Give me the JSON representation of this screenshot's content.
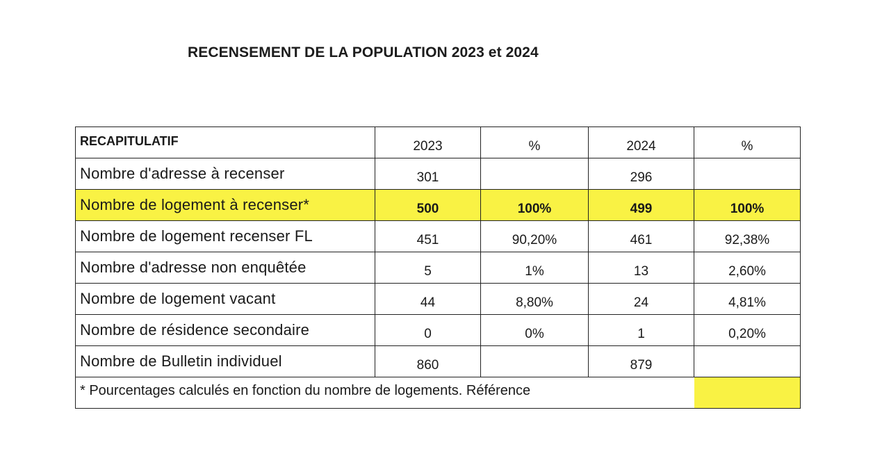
{
  "document": {
    "title": "RECENSEMENT DE LA POPULATION 2023 et 2024"
  },
  "table": {
    "header": {
      "label": "RECAPITULATIF",
      "col_2023": "2023",
      "col_pct_2023": "%",
      "col_2024": "2024",
      "col_pct_2024": "%"
    },
    "rows": [
      {
        "label": "Nombre d'adresse à recenser",
        "v2023": "301",
        "p2023": "",
        "v2024": "296",
        "p2024": ""
      },
      {
        "label": "Nombre de logement à recenser*",
        "v2023": "500",
        "p2023": "100%",
        "v2024": "499",
        "p2024": "100%",
        "highlight": true
      },
      {
        "label": "Nombre de logement recenser FL",
        "v2023": "451",
        "p2023": "90,20%",
        "v2024": "461",
        "p2024": "92,38%"
      },
      {
        "label": "Nombre d'adresse non enquêtée",
        "v2023": "5",
        "p2023": "1%",
        "v2024": "13",
        "p2024": "2,60%"
      },
      {
        "label": "Nombre de logement vacant",
        "v2023": "44",
        "p2023": "8,80%",
        "v2024": "24",
        "p2024": "4,81%"
      },
      {
        "label": "Nombre de résidence secondaire",
        "v2023": "0",
        "p2023": "0%",
        "v2024": "1",
        "p2024": "0,20%"
      },
      {
        "label": "Nombre de Bulletin individuel",
        "v2023": "860",
        "p2023": "",
        "v2024": "879",
        "p2024": ""
      }
    ],
    "footnote": "* Pourcentages calculés en fonction du nombre de logements. Référence",
    "highlight_color": "#f9f244"
  }
}
